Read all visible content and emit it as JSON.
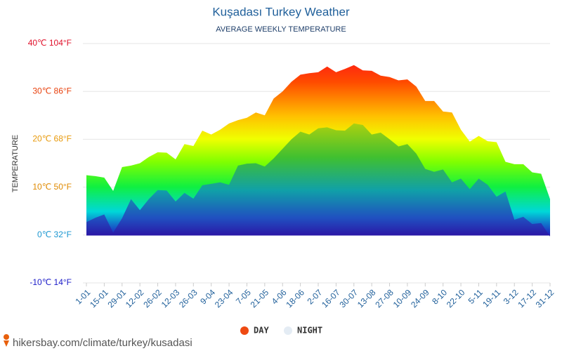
{
  "chart_data": {
    "type": "area",
    "title": "Kuşadası Turkey Weather",
    "subtitle": "AVERAGE WEEKLY TEMPERATURE",
    "y_label": "TEMPERATURE",
    "footer": "hikersbay.com/climate/turkey/kusadasi",
    "categories": [
      "1-01",
      null,
      "15-01",
      null,
      "29-01",
      null,
      "12-02",
      null,
      "26-02",
      null,
      "12-03",
      null,
      "26-03",
      null,
      "9-04",
      null,
      "23-04",
      null,
      "7-05",
      null,
      "21-05",
      null,
      "4-06",
      null,
      "18-06",
      null,
      "2-07",
      null,
      "16-07",
      null,
      "30-07",
      null,
      "13-08",
      null,
      "27-08",
      null,
      "10-09",
      null,
      "24-09",
      null,
      "8-10",
      null,
      "22-10",
      null,
      "5-11",
      null,
      "19-11",
      null,
      "3-12",
      null,
      "17-12",
      null,
      "31-12"
    ],
    "series": [
      {
        "name": "DAY",
        "color": "#ee4a12",
        "values": [
          12.5,
          12.3,
          12,
          9.2,
          14.2,
          14.5,
          15,
          16.3,
          17.3,
          17.2,
          15.8,
          19,
          18.6,
          21.8,
          21,
          22,
          23.3,
          24,
          24.5,
          25.6,
          25,
          28.5,
          30,
          32,
          33.5,
          33.8,
          34,
          35.2,
          34,
          34.7,
          35.5,
          34.4,
          34.3,
          33.3,
          33,
          32.3,
          32.5,
          31,
          28,
          28,
          25.8,
          25.6,
          22,
          19.5,
          20.7,
          19.6,
          19.4,
          15.3,
          14.8,
          14.8,
          13.1,
          12.8,
          7.5
        ]
      },
      {
        "name": "NIGHT",
        "color": "#e4ecf4",
        "values": [
          2.7,
          3.6,
          4.3,
          0.5,
          3.5,
          7.5,
          5.2,
          7.5,
          9.4,
          9.3,
          7,
          8.8,
          7.6,
          10.4,
          10.7,
          11,
          10.5,
          14.5,
          14.9,
          15,
          14.3,
          16,
          18,
          20,
          21.6,
          21,
          22.3,
          22.5,
          21.9,
          21.8,
          23.3,
          23,
          21,
          21.4,
          20,
          18.5,
          19,
          17,
          13.8,
          13.2,
          13.7,
          11,
          11.8,
          9.6,
          11.8,
          10.5,
          8,
          9.1,
          3.2,
          3.8,
          2.3,
          2.5,
          -0.3
        ]
      }
    ],
    "ylim": [
      -10,
      40
    ],
    "yticks": [
      {
        "value": -10,
        "label": "-10℃ 14°F"
      },
      {
        "value": 0,
        "label": "0℃ 32°F"
      },
      {
        "value": 10,
        "label": "10℃ 50°F"
      },
      {
        "value": 20,
        "label": "20℃ 68°F"
      },
      {
        "value": 30,
        "label": "30℃ 86°F"
      },
      {
        "value": 40,
        "label": "40℃ 104°F"
      }
    ],
    "ytick_colors": [
      "#1a1ac8",
      "#1a96d0",
      "#e08a00",
      "#e89a0c",
      "#e8400c",
      "#e0102a"
    ],
    "grid": true
  }
}
